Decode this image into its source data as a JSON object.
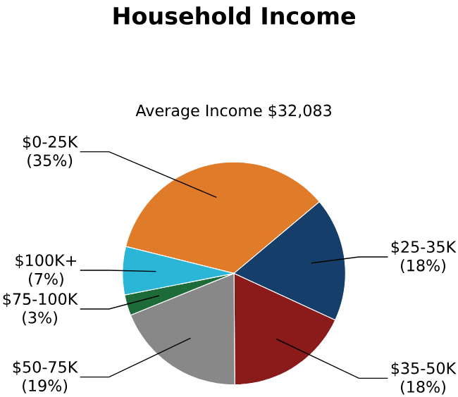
{
  "chart_data": {
    "type": "pie",
    "title": "Household Income",
    "subtitle": "Average Income  $32,083",
    "categories": [
      "$0-25K",
      "$25-35K",
      "$35-50K",
      "$50-75K",
      "$75-100K",
      "$100K+"
    ],
    "values": [
      35,
      18,
      18,
      19,
      3,
      7
    ],
    "value_labels": [
      "(35%)",
      "(18%)",
      "(18%)",
      "(19%)",
      "(3%)",
      "(7%)"
    ],
    "colors": [
      "#e07b2a",
      "#153f6a",
      "#8b1a1a",
      "#888888",
      "#1e6b3a",
      "#2bb5d6"
    ]
  }
}
